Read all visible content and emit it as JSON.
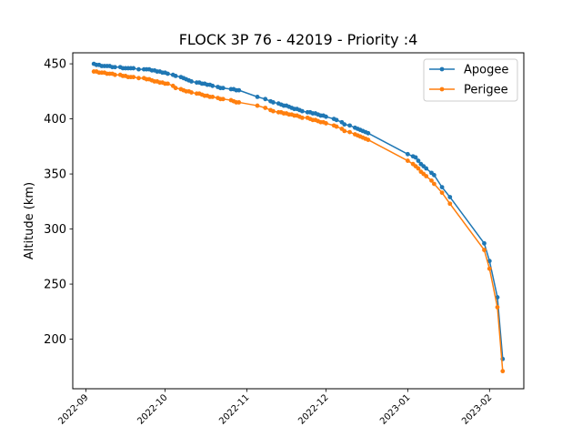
{
  "chart_data": {
    "type": "line",
    "title": "FLOCK 3P 76 - 42019 - Priority :4",
    "xlabel": "",
    "ylabel": "Altitude (km)",
    "x_type": "date",
    "xlim": [
      "2022-08-27",
      "2023-02-14"
    ],
    "ylim": [
      155,
      460
    ],
    "x_ticks": [
      "2022-09-01",
      "2022-10-01",
      "2022-11-01",
      "2022-12-01",
      "2023-01-01",
      "2023-02-01"
    ],
    "x_tick_labels": [
      "2022-09",
      "2022-10",
      "2022-11",
      "2022-12",
      "2023-01",
      "2023-02"
    ],
    "y_ticks": [
      200,
      250,
      300,
      350,
      400,
      450
    ],
    "y_tick_labels": [
      "200",
      "250",
      "300",
      "350",
      "400",
      "450"
    ],
    "grid": false,
    "legend_position": "top-right",
    "series": [
      {
        "name": "Apogee",
        "color": "#1f77b4",
        "marker": "circle",
        "x": [
          "2022-09-04",
          "2022-09-05",
          "2022-09-06",
          "2022-09-07",
          "2022-09-08",
          "2022-09-09",
          "2022-09-10",
          "2022-09-11",
          "2022-09-12",
          "2022-09-14",
          "2022-09-15",
          "2022-09-16",
          "2022-09-17",
          "2022-09-18",
          "2022-09-19",
          "2022-09-21",
          "2022-09-23",
          "2022-09-24",
          "2022-09-25",
          "2022-09-26",
          "2022-09-27",
          "2022-09-28",
          "2022-09-29",
          "2022-09-30",
          "2022-10-01",
          "2022-10-02",
          "2022-10-04",
          "2022-10-05",
          "2022-10-07",
          "2022-10-08",
          "2022-10-09",
          "2022-10-10",
          "2022-10-11",
          "2022-10-13",
          "2022-10-14",
          "2022-10-15",
          "2022-10-16",
          "2022-10-17",
          "2022-10-18",
          "2022-10-19",
          "2022-10-21",
          "2022-10-22",
          "2022-10-23",
          "2022-10-26",
          "2022-10-27",
          "2022-10-28",
          "2022-10-29",
          "2022-11-05",
          "2022-11-08",
          "2022-11-10",
          "2022-11-11",
          "2022-11-13",
          "2022-11-14",
          "2022-11-15",
          "2022-11-16",
          "2022-11-17",
          "2022-11-18",
          "2022-11-19",
          "2022-11-20",
          "2022-11-21",
          "2022-11-22",
          "2022-11-24",
          "2022-11-25",
          "2022-11-26",
          "2022-11-27",
          "2022-11-28",
          "2022-11-29",
          "2022-11-30",
          "2022-12-01",
          "2022-12-04",
          "2022-12-05",
          "2022-12-07",
          "2022-12-08",
          "2022-12-10",
          "2022-12-12",
          "2022-12-13",
          "2022-12-14",
          "2022-12-15",
          "2022-12-16",
          "2022-12-17",
          "2023-01-01",
          "2023-01-03",
          "2023-01-04",
          "2023-01-05",
          "2023-01-06",
          "2023-01-07",
          "2023-01-08",
          "2023-01-10",
          "2023-01-11",
          "2023-01-14",
          "2023-01-17",
          "2023-01-30",
          "2023-02-01",
          "2023-02-04",
          "2023-02-06"
        ],
        "values": [
          450,
          449,
          449,
          448,
          448,
          448,
          448,
          447,
          447,
          447,
          446,
          446,
          446,
          446,
          446,
          445,
          445,
          445,
          445,
          444,
          444,
          443,
          443,
          442,
          442,
          441,
          440,
          439,
          438,
          437,
          436,
          435,
          434,
          433,
          433,
          432,
          432,
          431,
          431,
          430,
          429,
          428,
          428,
          427,
          427,
          426,
          426,
          420,
          418,
          416,
          415,
          414,
          413,
          412,
          412,
          411,
          410,
          409,
          409,
          408,
          407,
          406,
          406,
          405,
          405,
          404,
          403,
          403,
          402,
          400,
          399,
          397,
          395,
          394,
          392,
          391,
          390,
          389,
          388,
          387,
          368,
          366,
          365,
          362,
          359,
          357,
          355,
          351,
          349,
          338,
          329,
          287,
          271,
          238,
          182
        ]
      },
      {
        "name": "Perigee",
        "color": "#ff7f0e",
        "marker": "circle",
        "x": [
          "2022-09-04",
          "2022-09-05",
          "2022-09-06",
          "2022-09-07",
          "2022-09-08",
          "2022-09-09",
          "2022-09-10",
          "2022-09-11",
          "2022-09-12",
          "2022-09-14",
          "2022-09-15",
          "2022-09-16",
          "2022-09-17",
          "2022-09-18",
          "2022-09-19",
          "2022-09-21",
          "2022-09-23",
          "2022-09-24",
          "2022-09-25",
          "2022-09-26",
          "2022-09-27",
          "2022-09-28",
          "2022-09-29",
          "2022-09-30",
          "2022-10-01",
          "2022-10-02",
          "2022-10-04",
          "2022-10-05",
          "2022-10-07",
          "2022-10-08",
          "2022-10-09",
          "2022-10-10",
          "2022-10-11",
          "2022-10-13",
          "2022-10-14",
          "2022-10-15",
          "2022-10-16",
          "2022-10-17",
          "2022-10-18",
          "2022-10-19",
          "2022-10-21",
          "2022-10-22",
          "2022-10-23",
          "2022-10-26",
          "2022-10-27",
          "2022-10-28",
          "2022-10-29",
          "2022-11-05",
          "2022-11-08",
          "2022-11-10",
          "2022-11-11",
          "2022-11-13",
          "2022-11-14",
          "2022-11-15",
          "2022-11-16",
          "2022-11-17",
          "2022-11-18",
          "2022-11-19",
          "2022-11-20",
          "2022-11-21",
          "2022-11-22",
          "2022-11-24",
          "2022-11-25",
          "2022-11-26",
          "2022-11-27",
          "2022-11-28",
          "2022-11-29",
          "2022-11-30",
          "2022-12-01",
          "2022-12-04",
          "2022-12-05",
          "2022-12-07",
          "2022-12-08",
          "2022-12-10",
          "2022-12-12",
          "2022-12-13",
          "2022-12-14",
          "2022-12-15",
          "2022-12-16",
          "2022-12-17",
          "2023-01-01",
          "2023-01-03",
          "2023-01-04",
          "2023-01-05",
          "2023-01-06",
          "2023-01-07",
          "2023-01-08",
          "2023-01-10",
          "2023-01-11",
          "2023-01-14",
          "2023-01-17",
          "2023-01-30",
          "2023-02-01",
          "2023-02-04",
          "2023-02-06"
        ],
        "values": [
          443,
          443,
          442,
          442,
          442,
          441,
          441,
          441,
          440,
          440,
          439,
          439,
          438,
          438,
          438,
          437,
          437,
          436,
          436,
          435,
          434,
          434,
          433,
          433,
          432,
          432,
          430,
          428,
          427,
          426,
          425,
          425,
          424,
          423,
          423,
          422,
          421,
          421,
          420,
          420,
          419,
          418,
          418,
          417,
          416,
          415,
          415,
          412,
          410,
          408,
          407,
          406,
          406,
          405,
          405,
          404,
          404,
          403,
          403,
          402,
          401,
          401,
          400,
          399,
          399,
          398,
          397,
          397,
          396,
          394,
          393,
          391,
          389,
          388,
          386,
          385,
          384,
          383,
          382,
          381,
          362,
          359,
          357,
          355,
          352,
          350,
          348,
          344,
          341,
          333,
          323,
          281,
          264,
          229,
          171
        ]
      }
    ]
  }
}
